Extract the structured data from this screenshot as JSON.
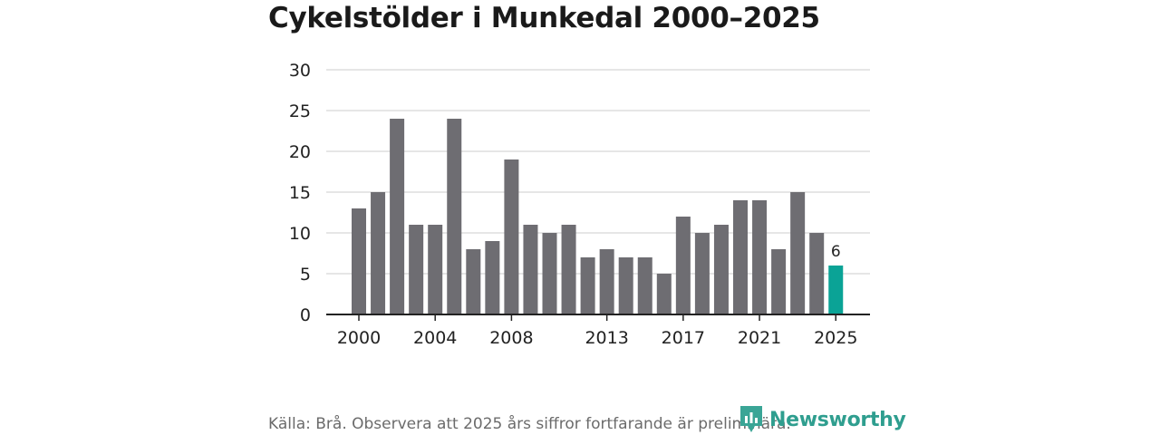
{
  "chart_data": {
    "type": "bar",
    "title": "Cykelstölder i Munkedal 2000–2025",
    "categories": [
      "2000",
      "2001",
      "2002",
      "2003",
      "2004",
      "2005",
      "2006",
      "2007",
      "2008",
      "2009",
      "2010",
      "2011",
      "2012",
      "2013",
      "2014",
      "2015",
      "2016",
      "2017",
      "2018",
      "2019",
      "2020",
      "2021",
      "2022",
      "2023",
      "2024",
      "2025"
    ],
    "values": [
      13,
      15,
      24,
      11,
      11,
      24,
      8,
      9,
      19,
      11,
      10,
      11,
      7,
      8,
      7,
      7,
      5,
      12,
      10,
      11,
      14,
      14,
      8,
      15,
      10,
      6
    ],
    "x_tick_labels": [
      "2000",
      "2004",
      "2008",
      "2013",
      "2017",
      "2021",
      "2025"
    ],
    "y_ticks": [
      0,
      5,
      10,
      15,
      20,
      25,
      30
    ],
    "ylim": [
      0,
      30
    ],
    "highlight": {
      "category": "2025",
      "label": "6"
    },
    "xlabel": "",
    "ylabel": "",
    "grid": true,
    "colors": {
      "bar": "#6e6d72",
      "highlight": "#0aa396",
      "grid": "#dddddd",
      "axis": "#222222"
    }
  },
  "source": "Källa: Brå. Observera att 2025 års siffror fortfarande är preliminära.",
  "brand": {
    "name": "Newsworthy",
    "icon": "chart-logo-icon"
  }
}
